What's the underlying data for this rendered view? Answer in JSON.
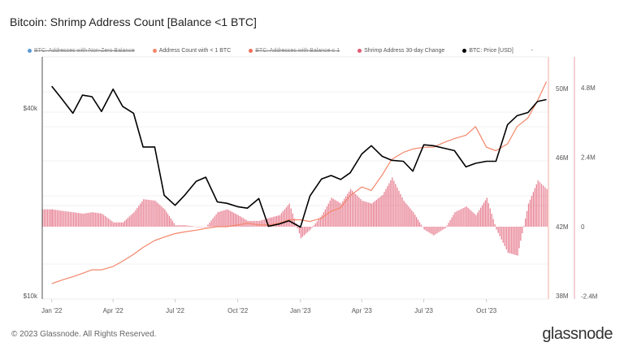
{
  "title": "Bitcoin: Shrimp Address Count [Balance <1 BTC]",
  "legend": [
    {
      "label": "BTC: Addresses with Non-Zero Balance",
      "color": "#5b9bd5",
      "enabled": false
    },
    {
      "label": "Address Count with < 1 BTC",
      "color": "#f4866a",
      "enabled": true
    },
    {
      "label": "BTC: Addresses with Balance ≤ 1",
      "color": "#f0705a",
      "enabled": false
    },
    {
      "label": "Shrimp Address 30-day Change",
      "color": "#e05a72",
      "enabled": true
    },
    {
      "label": "BTC: Price [USD]",
      "color": "#000000",
      "enabled": true
    }
  ],
  "legend_more": "-",
  "footer": "© 2023 Glassnode. All Rights Reserved.",
  "logo": "glassnode",
  "chart_data": {
    "type": "line",
    "title": "Bitcoin: Shrimp Address Count [Balance <1 BTC]",
    "x_ticks": [
      "Jan '22",
      "Apr '22",
      "Jul '22",
      "Oct '22",
      "Jan '23",
      "Apr '23",
      "Jul '23",
      "Oct '23"
    ],
    "x_tick_dates": [
      "2022-01-01",
      "2022-04-01",
      "2022-07-01",
      "2022-10-01",
      "2023-01-01",
      "2023-04-01",
      "2023-07-01",
      "2023-10-01"
    ],
    "x_range": [
      "2021-12-18",
      "2023-12-31"
    ],
    "y_axes": {
      "price": {
        "scale": "log",
        "range": [
          10000,
          50000
        ],
        "ticks": [
          {
            "v": 40000,
            "label": "$40k"
          },
          {
            "v": 10000,
            "label": "$10k"
          }
        ],
        "position": "left"
      },
      "count": {
        "scale": "linear",
        "range": [
          38,
          51
        ],
        "ticks": [
          {
            "v": 50,
            "label": "50M"
          },
          {
            "v": 46,
            "label": "46M"
          },
          {
            "v": 42,
            "label": "42M"
          },
          {
            "v": 38,
            "label": "38M"
          }
        ],
        "position": "right"
      },
      "change": {
        "scale": "linear",
        "range": [
          -2.4,
          5.2
        ],
        "ticks": [
          {
            "v": 4.8,
            "label": "4.8M"
          },
          {
            "v": 2.4,
            "label": "2.4M"
          },
          {
            "v": 0,
            "label": "0"
          },
          {
            "v": -2.4,
            "label": "-2.4M"
          }
        ],
        "position": "right-outer"
      }
    },
    "grid": true,
    "legend_position": "top",
    "x": [
      "2022-01-01",
      "2022-01-15",
      "2022-02-01",
      "2022-02-15",
      "2022-03-01",
      "2022-03-15",
      "2022-04-01",
      "2022-04-15",
      "2022-05-01",
      "2022-05-15",
      "2022-06-01",
      "2022-06-15",
      "2022-07-01",
      "2022-07-15",
      "2022-08-01",
      "2022-08-15",
      "2022-09-01",
      "2022-09-15",
      "2022-10-01",
      "2022-10-15",
      "2022-11-01",
      "2022-11-15",
      "2022-12-01",
      "2022-12-15",
      "2023-01-01",
      "2023-01-15",
      "2023-02-01",
      "2023-02-15",
      "2023-03-01",
      "2023-03-15",
      "2023-04-01",
      "2023-04-15",
      "2023-05-01",
      "2023-05-15",
      "2023-06-01",
      "2023-06-15",
      "2023-07-01",
      "2023-07-15",
      "2023-08-01",
      "2023-08-15",
      "2023-09-01",
      "2023-09-15",
      "2023-10-01",
      "2023-10-15",
      "2023-11-01",
      "2023-11-15",
      "2023-12-01",
      "2023-12-15",
      "2023-12-28"
    ],
    "series": [
      {
        "name": "Address Count with < 1 BTC",
        "axis": "count",
        "kind": "line",
        "color": "#f4866a",
        "values": [
          38.7,
          38.9,
          39.1,
          39.3,
          39.5,
          39.5,
          39.7,
          40.0,
          40.4,
          40.8,
          41.2,
          41.4,
          41.6,
          41.7,
          41.8,
          41.9,
          42.0,
          42.0,
          42.1,
          42.2,
          42.1,
          42.1,
          42.2,
          42.4,
          42.4,
          42.3,
          42.5,
          42.9,
          43.1,
          43.8,
          44.3,
          44.1,
          45.0,
          45.9,
          46.3,
          46.5,
          46.6,
          46.6,
          46.9,
          47.1,
          47.3,
          47.8,
          46.6,
          46.4,
          46.8,
          47.8,
          48.3,
          49.3,
          50.4
        ]
      },
      {
        "name": "Shrimp Address 30-day Change",
        "axis": "change",
        "kind": "bar",
        "color": "#e05a72",
        "values": [
          0.6,
          0.55,
          0.5,
          0.45,
          0.5,
          0.45,
          0.15,
          0.15,
          0.5,
          0.95,
          0.9,
          0.6,
          0.05,
          0.05,
          0.0,
          0.0,
          0.5,
          0.6,
          0.4,
          0.2,
          0.2,
          0.3,
          0.4,
          0.8,
          -0.4,
          -0.1,
          0.4,
          1.0,
          0.8,
          1.3,
          0.9,
          0.8,
          1.1,
          1.7,
          0.9,
          0.5,
          -0.1,
          -0.3,
          -0.05,
          0.5,
          0.7,
          0.4,
          1.0,
          -0.1,
          -0.9,
          -1.0,
          0.8,
          1.6,
          1.3
        ]
      },
      {
        "name": "BTC: Price [USD]",
        "axis": "price",
        "kind": "line",
        "color": "#000000",
        "values": [
          47000,
          43000,
          38500,
          44000,
          43500,
          39000,
          46000,
          40500,
          38500,
          30000,
          30000,
          21000,
          19500,
          21000,
          23300,
          24000,
          20000,
          19800,
          19300,
          19100,
          20500,
          16700,
          17000,
          17400,
          16600,
          20900,
          23700,
          24300,
          23600,
          24800,
          28500,
          30300,
          28000,
          27200,
          27000,
          25100,
          30500,
          30300,
          29700,
          29200,
          25900,
          26600,
          27000,
          27000,
          35400,
          37800,
          38700,
          42000,
          42600
        ]
      }
    ]
  }
}
